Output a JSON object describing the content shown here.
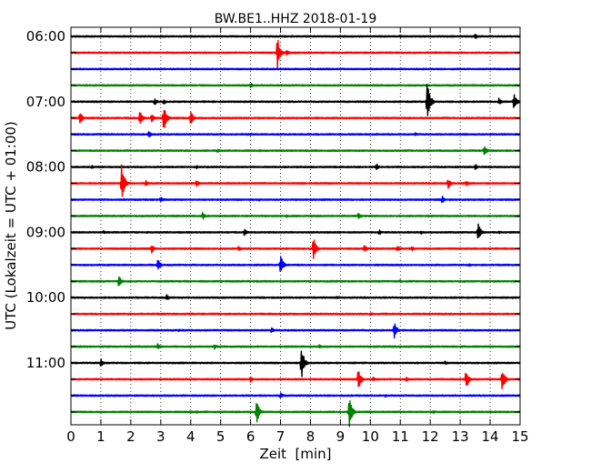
{
  "chart_data": {
    "type": "line",
    "title": "BW.BE1..HHZ 2018-01-19",
    "xlabel": "Zeit  [min]",
    "ylabel": "UTC (Lokalzeit = UTC + 01:00)",
    "xlim": [
      0,
      15
    ],
    "x_ticks": [
      0,
      1,
      2,
      3,
      4,
      5,
      6,
      7,
      8,
      9,
      10,
      11,
      12,
      13,
      14,
      15
    ],
    "x_tick_labels": [
      "0",
      "1",
      "2",
      "3",
      "4",
      "5",
      "6",
      "7",
      "8",
      "9",
      "10",
      "11",
      "12",
      "13",
      "14",
      "15"
    ],
    "grid": "vertical dotted",
    "row_interval_minutes": 15,
    "colors": [
      "#000000",
      "#ff0000",
      "#0000ff",
      "#008000"
    ],
    "y_tick_labels": [
      "06:00",
      "07:00",
      "08:00",
      "09:00",
      "10:00",
      "11:00"
    ],
    "series": [
      {
        "start": "06:00",
        "events": [
          {
            "t": 13.5,
            "a": 0.25
          },
          {
            "t": 11.0,
            "a": 0.12
          },
          {
            "t": 4.0,
            "a": 0.1
          }
        ]
      },
      {
        "start": "06:15",
        "events": [
          {
            "t": 6.9,
            "a": 1.25
          },
          {
            "t": 7.2,
            "a": 0.25
          }
        ]
      },
      {
        "start": "06:30",
        "events": []
      },
      {
        "start": "06:45",
        "events": [
          {
            "t": 6.0,
            "a": 0.25
          }
        ]
      },
      {
        "start": "07:00",
        "events": [
          {
            "t": 11.9,
            "a": 1.8
          },
          {
            "t": 14.8,
            "a": 0.7
          },
          {
            "t": 2.8,
            "a": 0.3
          },
          {
            "t": 3.1,
            "a": 0.25
          },
          {
            "t": 14.3,
            "a": 0.3
          }
        ]
      },
      {
        "start": "07:15",
        "events": [
          {
            "t": 3.1,
            "a": 1.1
          },
          {
            "t": 0.3,
            "a": 0.55
          },
          {
            "t": 2.3,
            "a": 0.6
          },
          {
            "t": 4.0,
            "a": 0.55
          },
          {
            "t": 2.7,
            "a": 0.35
          }
        ]
      },
      {
        "start": "07:30",
        "events": [
          {
            "t": 2.6,
            "a": 0.3
          },
          {
            "t": 6.0,
            "a": 0.12
          },
          {
            "t": 11.5,
            "a": 0.15
          }
        ]
      },
      {
        "start": "07:45",
        "events": [
          {
            "t": 13.8,
            "a": 0.45
          },
          {
            "t": 4.9,
            "a": 0.15
          },
          {
            "t": 6.3,
            "a": 0.12
          }
        ]
      },
      {
        "start": "08:00",
        "events": [
          {
            "t": 10.2,
            "a": 0.3
          },
          {
            "t": 13.5,
            "a": 0.25
          },
          {
            "t": 0.7,
            "a": 0.15
          },
          {
            "t": 4.2,
            "a": 0.15
          },
          {
            "t": 8.8,
            "a": 0.12
          }
        ]
      },
      {
        "start": "08:15",
        "events": [
          {
            "t": 1.7,
            "a": 1.6
          },
          {
            "t": 4.2,
            "a": 0.3
          },
          {
            "t": 12.6,
            "a": 0.4
          },
          {
            "t": 13.2,
            "a": 0.3
          },
          {
            "t": 2.5,
            "a": 0.25
          }
        ]
      },
      {
        "start": "08:30",
        "events": [
          {
            "t": 3.0,
            "a": 0.25
          },
          {
            "t": 12.4,
            "a": 0.3
          },
          {
            "t": 6.3,
            "a": 0.12
          }
        ]
      },
      {
        "start": "08:45",
        "events": [
          {
            "t": 4.4,
            "a": 0.3
          },
          {
            "t": 9.6,
            "a": 0.3
          },
          {
            "t": 7.2,
            "a": 0.12
          }
        ]
      },
      {
        "start": "09:00",
        "events": [
          {
            "t": 13.6,
            "a": 0.8
          },
          {
            "t": 5.8,
            "a": 0.3
          },
          {
            "t": 1.1,
            "a": 0.15
          },
          {
            "t": 10.3,
            "a": 0.2
          },
          {
            "t": 11.7,
            "a": 0.15
          },
          {
            "t": 14.3,
            "a": 0.15
          }
        ]
      },
      {
        "start": "09:15",
        "events": [
          {
            "t": 8.1,
            "a": 0.9
          },
          {
            "t": 2.7,
            "a": 0.35
          },
          {
            "t": 5.6,
            "a": 0.25
          },
          {
            "t": 9.8,
            "a": 0.35
          },
          {
            "t": 10.9,
            "a": 0.3
          },
          {
            "t": 11.4,
            "a": 0.2
          }
        ]
      },
      {
        "start": "09:30",
        "events": [
          {
            "t": 7.0,
            "a": 0.9
          },
          {
            "t": 2.9,
            "a": 0.5
          },
          {
            "t": 13.3,
            "a": 0.15
          }
        ]
      },
      {
        "start": "09:45",
        "events": [
          {
            "t": 1.6,
            "a": 0.55
          },
          {
            "t": 5.0,
            "a": 0.12
          },
          {
            "t": 11.0,
            "a": 0.12
          }
        ]
      },
      {
        "start": "10:00",
        "events": [
          {
            "t": 3.2,
            "a": 0.25
          },
          {
            "t": 8.9,
            "a": 0.12
          }
        ]
      },
      {
        "start": "10:15",
        "events": [
          {
            "t": 10.0,
            "a": 0.15
          }
        ]
      },
      {
        "start": "10:30",
        "events": [
          {
            "t": 10.8,
            "a": 0.65
          },
          {
            "t": 6.7,
            "a": 0.25
          },
          {
            "t": 3.6,
            "a": 0.15
          }
        ]
      },
      {
        "start": "10:45",
        "events": [
          {
            "t": 2.9,
            "a": 0.25
          },
          {
            "t": 4.8,
            "a": 0.2
          },
          {
            "t": 8.3,
            "a": 0.2
          }
        ]
      },
      {
        "start": "11:00",
        "events": [
          {
            "t": 7.7,
            "a": 1.4
          },
          {
            "t": 1.0,
            "a": 0.35
          },
          {
            "t": 12.5,
            "a": 0.15
          }
        ]
      },
      {
        "start": "11:15",
        "events": [
          {
            "t": 9.6,
            "a": 0.9
          },
          {
            "t": 14.4,
            "a": 1.0
          },
          {
            "t": 13.2,
            "a": 0.8
          },
          {
            "t": 6.0,
            "a": 0.25
          },
          {
            "t": 11.2,
            "a": 0.2
          },
          {
            "t": 10.1,
            "a": 0.2
          }
        ]
      },
      {
        "start": "11:30",
        "events": [
          {
            "t": 7.0,
            "a": 0.25
          },
          {
            "t": 10.5,
            "a": 0.12
          }
        ]
      },
      {
        "start": "11:45",
        "events": [
          {
            "t": 9.3,
            "a": 1.3
          },
          {
            "t": 6.2,
            "a": 1.0
          },
          {
            "t": 4.2,
            "a": 0.15
          },
          {
            "t": 12.1,
            "a": 0.15
          }
        ]
      }
    ]
  }
}
